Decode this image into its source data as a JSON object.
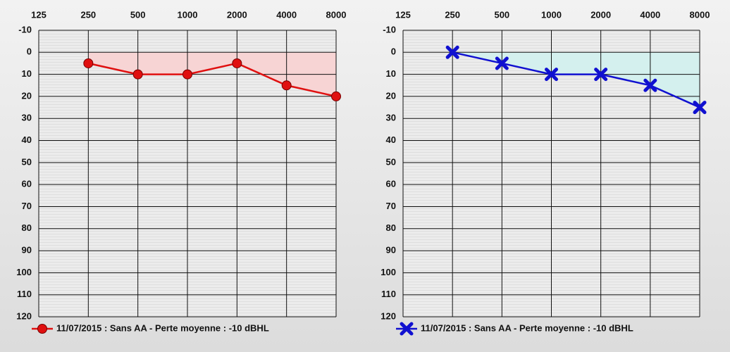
{
  "chart_data": [
    {
      "type": "line",
      "categories": [
        "125",
        "250",
        "500",
        "1000",
        "2000",
        "4000",
        "8000"
      ],
      "series": [
        {
          "name": "11/07/2015 : Sans AA - Perte moyenne : -10 dBHL",
          "color": "#e01010",
          "values": [
            null,
            5,
            10,
            10,
            5,
            15,
            20
          ]
        }
      ],
      "marker": "circle",
      "fill_color": "#f7d4d4",
      "ylim": [
        -10,
        120
      ],
      "yticks": [
        -10,
        0,
        10,
        20,
        30,
        40,
        50,
        60,
        70,
        80,
        90,
        100,
        110,
        120
      ],
      "y_inverted": true,
      "xaxis_position": "top",
      "grid": true,
      "legend": "bottom"
    },
    {
      "type": "line",
      "categories": [
        "125",
        "250",
        "500",
        "1000",
        "2000",
        "4000",
        "8000"
      ],
      "series": [
        {
          "name": "11/07/2015 : Sans AA - Perte moyenne : -10 dBHL",
          "color": "#1010d0",
          "values": [
            null,
            0,
            5,
            10,
            10,
            15,
            25
          ]
        }
      ],
      "marker": "x",
      "fill_color": "#d4f0ee",
      "ylim": [
        -10,
        120
      ],
      "yticks": [
        -10,
        0,
        10,
        20,
        30,
        40,
        50,
        60,
        70,
        80,
        90,
        100,
        110,
        120
      ],
      "y_inverted": true,
      "xaxis_position": "top",
      "grid": true,
      "legend": "bottom"
    }
  ]
}
